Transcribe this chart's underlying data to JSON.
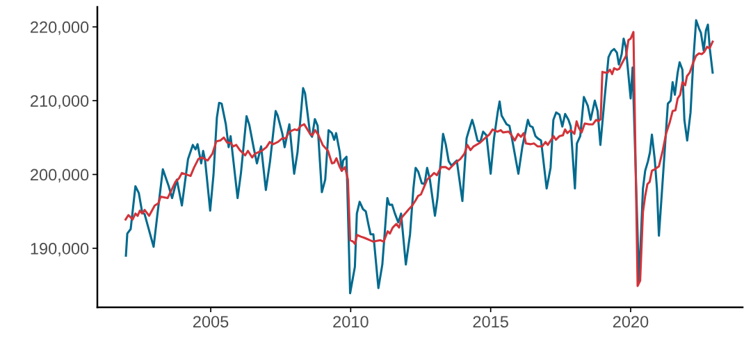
{
  "chart_data": {
    "type": "line",
    "xlim": [
      2000.95,
      2024.0
    ],
    "ylim": [
      182000,
      222700
    ],
    "xticks": [
      2005,
      2010,
      2015,
      2020
    ],
    "yticks": [
      {
        "value": 190000,
        "label": "190,000"
      },
      {
        "value": 200000,
        "label": "200,000"
      },
      {
        "value": 210000,
        "label": "210,000"
      },
      {
        "value": 220000,
        "label": "220,000"
      }
    ],
    "grid": false,
    "marker": "none",
    "line_style": "solid",
    "series": [
      {
        "color": "#006a8e",
        "x": [
          2001.97,
          2002.02,
          2002.14,
          2002.31,
          2002.43,
          2002.55,
          2002.64,
          2002.96,
          2003.09,
          2003.29,
          2003.5,
          2003.62,
          2003.79,
          2003.97,
          2004.19,
          2004.36,
          2004.46,
          2004.53,
          2004.66,
          2004.73,
          2004.8,
          2004.98,
          2005.1,
          2005.22,
          2005.3,
          2005.39,
          2005.54,
          2005.64,
          2005.71,
          2005.96,
          2006.08,
          2006.28,
          2006.38,
          2006.53,
          2006.65,
          2006.8,
          2006.97,
          2007.12,
          2007.32,
          2007.39,
          2007.56,
          2007.64,
          2007.81,
          2007.98,
          2008.1,
          2008.3,
          2008.37,
          2008.55,
          2008.62,
          2008.72,
          2008.82,
          2008.97,
          2009.09,
          2009.21,
          2009.33,
          2009.41,
          2009.48,
          2009.61,
          2009.68,
          2009.73,
          2009.85,
          2009.98,
          2010.15,
          2010.22,
          2010.32,
          2010.44,
          2010.54,
          2010.64,
          2010.71,
          2010.81,
          2010.99,
          2011.13,
          2011.31,
          2011.38,
          2011.48,
          2011.58,
          2011.7,
          2011.8,
          2011.97,
          2012.12,
          2012.24,
          2012.32,
          2012.41,
          2012.54,
          2012.64,
          2012.73,
          2012.83,
          2013.01,
          2013.1,
          2013.3,
          2013.4,
          2013.5,
          2013.6,
          2013.79,
          2013.99,
          2014.14,
          2014.21,
          2014.34,
          2014.41,
          2014.53,
          2014.63,
          2014.73,
          2014.85,
          2015.0,
          2015.12,
          2015.25,
          2015.32,
          2015.39,
          2015.57,
          2015.67,
          2015.76,
          2015.99,
          2016.13,
          2016.33,
          2016.4,
          2016.5,
          2016.6,
          2016.68,
          2016.8,
          2017.0,
          2017.14,
          2017.24,
          2017.34,
          2017.46,
          2017.56,
          2017.66,
          2017.78,
          2017.86,
          2018.01,
          2018.08,
          2018.2,
          2018.33,
          2018.4,
          2018.47,
          2018.57,
          2018.72,
          2018.82,
          2018.92,
          2019.06,
          2019.21,
          2019.31,
          2019.41,
          2019.51,
          2019.58,
          2019.68,
          2019.75,
          2019.83,
          2020.0,
          2020.07,
          2020.3,
          2020.44,
          2020.52,
          2020.62,
          2020.69,
          2020.76,
          2020.86,
          2020.94,
          2021.01,
          2021.16,
          2021.33,
          2021.43,
          2021.5,
          2021.58,
          2021.68,
          2021.75,
          2021.85,
          2021.92,
          2022.02,
          2022.14,
          2022.24,
          2022.34,
          2022.44,
          2022.51,
          2022.61,
          2022.69,
          2022.76,
          2022.83,
          2022.93
        ],
        "values": [
          189000,
          192000,
          192600,
          198400,
          197500,
          194900,
          194600,
          190200,
          194400,
          200700,
          198400,
          196800,
          199300,
          195800,
          202100,
          204000,
          203400,
          204100,
          201500,
          203200,
          201900,
          195100,
          200000,
          207700,
          209700,
          209600,
          206800,
          203700,
          205200,
          196800,
          200200,
          207900,
          206700,
          203700,
          201500,
          203800,
          197900,
          201800,
          208600,
          208000,
          205500,
          203700,
          206800,
          200100,
          203000,
          211700,
          211000,
          205500,
          205100,
          207500,
          206600,
          197600,
          199300,
          206000,
          205600,
          204700,
          205600,
          203000,
          200500,
          201900,
          202400,
          183900,
          187500,
          194700,
          196300,
          195300,
          195000,
          193100,
          191900,
          191900,
          184600,
          187800,
          196800,
          195900,
          195900,
          194700,
          193500,
          194700,
          187800,
          191900,
          198100,
          200900,
          200400,
          198800,
          198700,
          200900,
          199300,
          194400,
          196800,
          205500,
          204000,
          201800,
          201200,
          201900,
          196400,
          204900,
          205800,
          207400,
          206500,
          204600,
          204400,
          205800,
          205300,
          200100,
          204900,
          208400,
          209900,
          208000,
          206800,
          206600,
          204900,
          200100,
          203700,
          207400,
          206600,
          206400,
          205200,
          204900,
          204600,
          198100,
          200900,
          207400,
          208400,
          208100,
          206500,
          208200,
          207400,
          206500,
          198100,
          204200,
          205200,
          210500,
          209900,
          209300,
          207400,
          210000,
          208600,
          204000,
          209900,
          215900,
          216700,
          217000,
          216500,
          214900,
          216300,
          218400,
          217200,
          210300,
          214500,
          185500,
          198100,
          200500,
          201800,
          203000,
          205400,
          202100,
          198100,
          191700,
          200000,
          209600,
          210000,
          212500,
          210800,
          213800,
          215200,
          214200,
          207400,
          204600,
          208400,
          215500,
          220900,
          219800,
          219200,
          216800,
          219500,
          220300,
          217000,
          213800
        ]
      },
      {
        "color": "#d1343a",
        "x": [
          2001.96,
          2002.06,
          2002.21,
          2002.31,
          2002.39,
          2002.47,
          2002.55,
          2002.64,
          2002.8,
          2003.0,
          2003.13,
          2003.21,
          2003.46,
          2003.74,
          2003.87,
          2003.97,
          2004.28,
          2004.4,
          2004.56,
          2004.69,
          2004.89,
          2005.06,
          2005.2,
          2005.34,
          2005.47,
          2005.59,
          2005.71,
          2005.8,
          2005.91,
          2006.04,
          2006.23,
          2006.33,
          2006.48,
          2006.58,
          2006.82,
          2006.99,
          2007.11,
          2007.23,
          2007.4,
          2007.56,
          2007.68,
          2007.81,
          2007.99,
          2008.1,
          2008.22,
          2008.34,
          2008.55,
          2008.63,
          2008.73,
          2008.84,
          2008.92,
          2009.0,
          2009.19,
          2009.33,
          2009.41,
          2009.49,
          2009.61,
          2009.68,
          2009.8,
          2009.9,
          2009.98,
          2010.09,
          2010.15,
          2010.23,
          2010.35,
          2010.5,
          2010.68,
          2010.81,
          2011.05,
          2011.18,
          2011.32,
          2011.4,
          2011.5,
          2011.63,
          2011.73,
          2011.83,
          2012.08,
          2012.2,
          2012.32,
          2012.41,
          2012.51,
          2012.61,
          2012.73,
          2012.9,
          2012.98,
          2013.08,
          2013.23,
          2013.39,
          2013.51,
          2013.64,
          2013.72,
          2013.92,
          2014.06,
          2014.17,
          2014.28,
          2014.39,
          2014.62,
          2014.79,
          2014.95,
          2015.07,
          2015.24,
          2015.36,
          2015.44,
          2015.65,
          2015.73,
          2015.86,
          2015.98,
          2016.08,
          2016.18,
          2016.26,
          2016.43,
          2016.55,
          2016.68,
          2016.84,
          2016.96,
          2017.04,
          2017.25,
          2017.33,
          2017.46,
          2017.58,
          2017.66,
          2017.74,
          2017.86,
          2017.99,
          2018.07,
          2018.15,
          2018.25,
          2018.36,
          2018.52,
          2018.65,
          2018.77,
          2018.85,
          2018.93,
          2018.99,
          2019.1,
          2019.18,
          2019.26,
          2019.34,
          2019.41,
          2019.51,
          2019.59,
          2019.71,
          2019.84,
          2019.92,
          2020.0,
          2020.1,
          2020.25,
          2020.34,
          2020.44,
          2020.52,
          2020.6,
          2020.68,
          2020.76,
          2020.86,
          2021.01,
          2021.15,
          2021.27,
          2021.4,
          2021.5,
          2021.6,
          2021.68,
          2021.77,
          2021.85,
          2021.95,
          2022.01,
          2022.11,
          2022.22,
          2022.34,
          2022.44,
          2022.54,
          2022.63,
          2022.73,
          2022.82,
          2022.93
        ],
        "values": [
          193900,
          194500,
          193900,
          194700,
          194400,
          195100,
          194700,
          195200,
          194400,
          195800,
          196100,
          197000,
          196800,
          199000,
          199500,
          200200,
          199800,
          200900,
          202100,
          202300,
          201900,
          202800,
          204500,
          204600,
          205000,
          204300,
          204300,
          203800,
          204000,
          203300,
          202600,
          203200,
          202300,
          202800,
          203200,
          203700,
          204400,
          204100,
          204400,
          204900,
          204900,
          205800,
          206100,
          206000,
          206600,
          206800,
          205500,
          205300,
          206000,
          205400,
          204700,
          204000,
          203200,
          201500,
          201600,
          202200,
          201000,
          200500,
          201000,
          199300,
          191100,
          190900,
          190600,
          191800,
          191600,
          191400,
          191100,
          190900,
          191100,
          190900,
          192300,
          192000,
          192800,
          193300,
          192800,
          194200,
          195300,
          195800,
          196500,
          197100,
          197300,
          198200,
          199300,
          199900,
          200200,
          199900,
          201000,
          201000,
          200700,
          201200,
          201500,
          202100,
          202800,
          204000,
          203300,
          203800,
          204300,
          204900,
          205400,
          206100,
          205800,
          206000,
          205700,
          205800,
          205400,
          204600,
          205500,
          205100,
          205600,
          204200,
          204100,
          204200,
          203800,
          203800,
          204400,
          204000,
          205200,
          204700,
          205200,
          205300,
          206100,
          205600,
          206000,
          205500,
          207200,
          206300,
          205700,
          206900,
          206800,
          206800,
          207400,
          207200,
          207500,
          213900,
          213800,
          213800,
          214200,
          213600,
          214400,
          214200,
          214300,
          215200,
          216100,
          218200,
          218400,
          219300,
          184900,
          185600,
          194900,
          197100,
          198700,
          199000,
          200500,
          200700,
          201100,
          203300,
          205600,
          207100,
          208600,
          208700,
          210300,
          210800,
          212500,
          212100,
          213300,
          213800,
          215000,
          216100,
          216400,
          216300,
          216600,
          217300,
          217100,
          218000
        ]
      }
    ]
  }
}
